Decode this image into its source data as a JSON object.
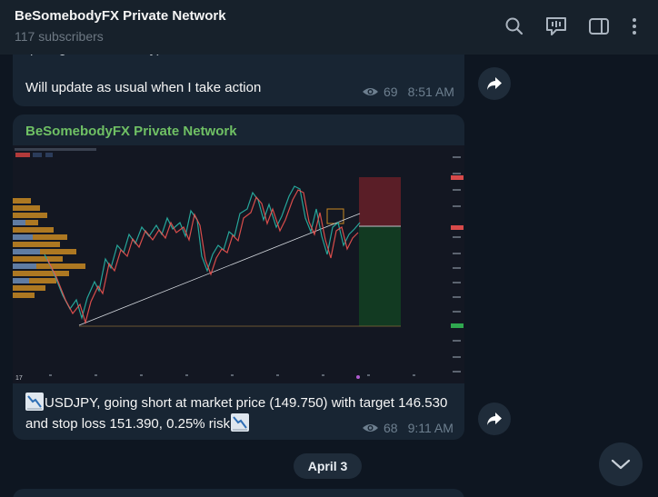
{
  "header": {
    "title": "BeSomebodyFX Private Network",
    "subtitle": "117 subscribers",
    "icons": [
      "search-icon",
      "live-chat-icon",
      "sidebar-toggle-icon",
      "more-options-icon"
    ]
  },
  "messages": [
    {
      "partial_top_text": "quite good technically)",
      "text": "Will update as usual when I take action",
      "views": "69",
      "time": "8:51 AM"
    },
    {
      "sender": "BeSomebodyFX Private Network",
      "text_line1": "USDJPY, going short at market price (149.750) with target 146.530",
      "text_line2": "and stop loss 151.390, 0.25% risk",
      "views": "68",
      "time": "9:11 AM",
      "emoji_icon": "chart-decreasing-icon"
    }
  ],
  "date_separator": "April 3",
  "colors": {
    "background": "#0e1621",
    "header": "#17212b",
    "bubble": "#182533",
    "sender_name": "#6fc064",
    "meta_text": "#6d7f8f"
  }
}
